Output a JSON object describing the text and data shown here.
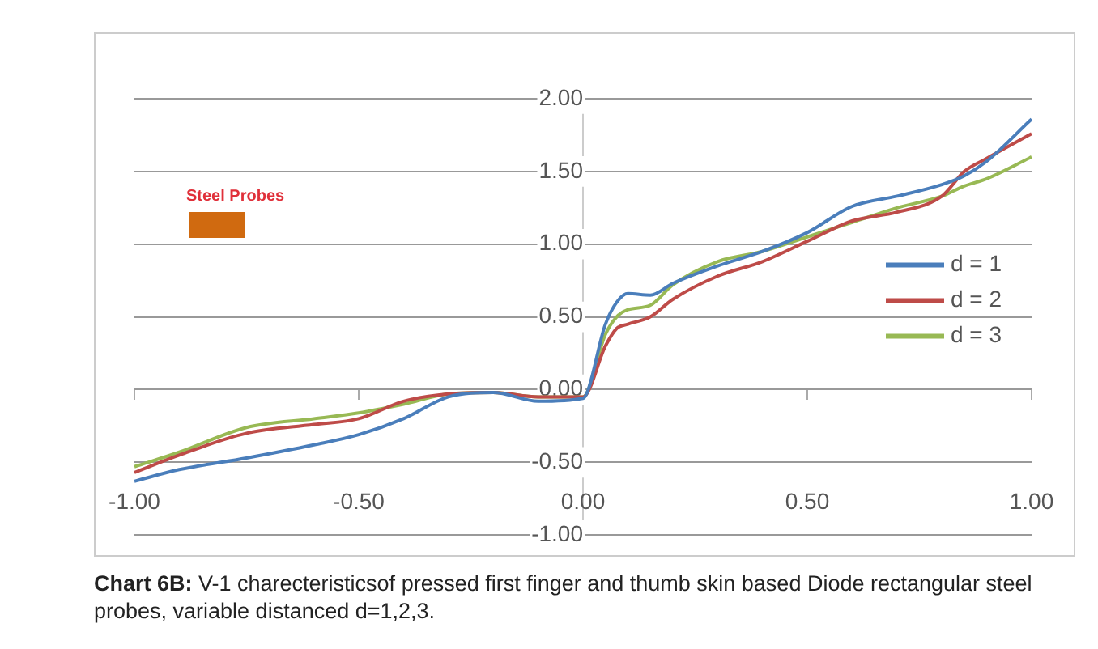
{
  "chart_data": {
    "type": "line",
    "annotations": [
      "Steel Probes",
      "Chart 6B: V-1 charecteristicsof pressed first finger and thumb skin based Diode rectangular steel probes, variable distanced d=1,2,3."
    ],
    "xlim": [
      -1,
      1
    ],
    "ylim": [
      -1,
      2
    ],
    "xticks": [
      {
        "value": -1,
        "label": "-1.00"
      },
      {
        "value": -0.5,
        "label": "-0.50"
      },
      {
        "value": 0,
        "label": "0.00"
      },
      {
        "value": 0.5,
        "label": "0.50"
      },
      {
        "value": 1,
        "label": "1.00"
      }
    ],
    "yticks": [
      {
        "value": -1,
        "label": "-1.00"
      },
      {
        "value": -0.5,
        "label": "-0.50"
      },
      {
        "value": 0,
        "label": "0.00"
      },
      {
        "value": 0.5,
        "label": "0.50"
      },
      {
        "value": 1,
        "label": "1.00"
      },
      {
        "value": 1.5,
        "label": "1.50"
      },
      {
        "value": 2,
        "label": "2.00"
      }
    ],
    "grid": "y",
    "legend": "right",
    "marker": "none",
    "line_style": "solid",
    "x": [
      -1,
      -0.9,
      -0.75,
      -0.6,
      -0.5,
      -0.4,
      -0.3,
      -0.2,
      -0.1,
      0,
      0.05,
      0.075,
      0.1,
      0.15,
      0.2,
      0.3,
      0.4,
      0.5,
      0.6,
      0.7,
      0.8,
      0.85,
      0.9,
      1
    ],
    "series": [
      {
        "name": "d = 1",
        "color": "#4a7ebb",
        "values": [
          -0.63,
          -0.55,
          -0.47,
          -0.38,
          -0.31,
          -0.2,
          -0.05,
          -0.02,
          -0.08,
          -0.06,
          0.45,
          0.6,
          0.66,
          0.65,
          0.73,
          0.85,
          0.95,
          1.08,
          1.26,
          1.33,
          1.41,
          1.47,
          1.57,
          1.86
        ]
      },
      {
        "name": "d = 2",
        "color": "#be4b48",
        "values": [
          -0.57,
          -0.45,
          -0.3,
          -0.24,
          -0.2,
          -0.08,
          -0.03,
          -0.02,
          -0.05,
          -0.05,
          0.3,
          0.42,
          0.45,
          0.5,
          0.62,
          0.78,
          0.88,
          1.02,
          1.16,
          1.22,
          1.33,
          1.5,
          1.59,
          1.76
        ]
      },
      {
        "name": "d = 3",
        "color": "#98b954",
        "values": [
          -0.53,
          -0.43,
          -0.26,
          -0.2,
          -0.16,
          -0.1,
          -0.03,
          -0.02,
          -0.05,
          -0.05,
          0.38,
          0.5,
          0.55,
          0.58,
          0.72,
          0.88,
          0.95,
          1.05,
          1.15,
          1.25,
          1.33,
          1.4,
          1.45,
          1.6
        ]
      }
    ]
  }
}
